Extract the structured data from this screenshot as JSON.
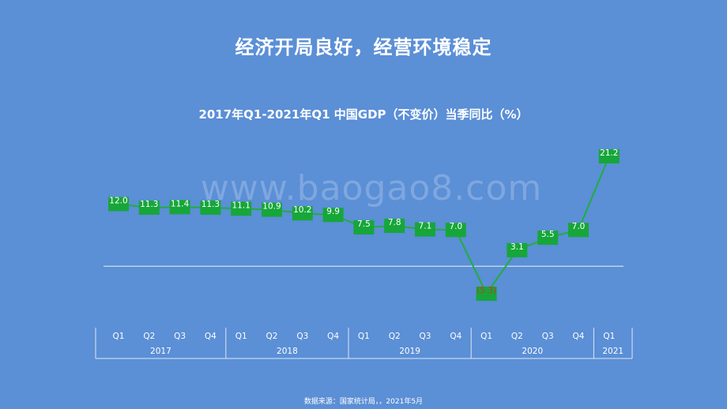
{
  "header": {
    "title": "经济开局良好，经营环境稳定"
  },
  "watermark": "www.baogao8.com",
  "footer": {
    "source": "数据来源：国家统计局，，2021年5月"
  },
  "colors": {
    "background": "#5b8fd6",
    "line": "#1fae3c",
    "marker": "#17a63a",
    "negative_label": "#c0392b",
    "text": "#ffffff"
  },
  "chart_data": {
    "type": "line",
    "title": "2017年Q1-2021年Q1 中国GDP（不变价）当季同比（%）",
    "categories": [
      "Q1",
      "Q2",
      "Q3",
      "Q4",
      "Q1",
      "Q2",
      "Q3",
      "Q4",
      "Q1",
      "Q2",
      "Q3",
      "Q4",
      "Q1",
      "Q2",
      "Q3",
      "Q4",
      "Q1"
    ],
    "years": [
      {
        "label": "2017",
        "count": 4
      },
      {
        "label": "2018",
        "count": 4
      },
      {
        "label": "2019",
        "count": 4
      },
      {
        "label": "2020",
        "count": 4
      },
      {
        "label": "2021",
        "count": 1
      }
    ],
    "values": [
      12.0,
      11.3,
      11.4,
      11.3,
      11.1,
      10.9,
      10.2,
      9.9,
      7.5,
      7.8,
      7.1,
      7.0,
      -5.3,
      3.1,
      5.5,
      7.0,
      21.2
    ],
    "data_labels": [
      "12.0",
      "11.3",
      "11.4",
      "11.3",
      "11.1",
      "10.9",
      "10.2",
      "9.9",
      "7.5",
      "7.8",
      "7.1",
      "7.0",
      "(5.3)",
      "3.1",
      "5.5",
      "7.0",
      "21.2"
    ],
    "ylim": [
      -5.3,
      21.2
    ],
    "grid": false,
    "zero_line": true
  }
}
